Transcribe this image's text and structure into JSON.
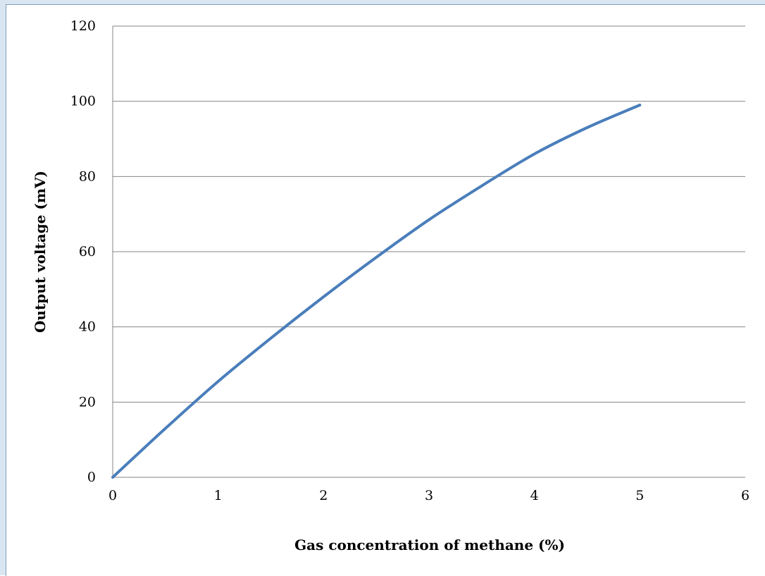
{
  "chart_data": {
    "type": "line",
    "title": "",
    "xlabel": "Gas concentration of methane (%)",
    "ylabel": "Output voltage (mV)",
    "xlim": [
      0,
      6
    ],
    "ylim": [
      0,
      120
    ],
    "x_ticks": [
      "0",
      "1",
      "2",
      "3",
      "4",
      "5",
      "6"
    ],
    "y_ticks": [
      "0",
      "20",
      "40",
      "60",
      "80",
      "100",
      "120"
    ],
    "grid": "horizontal",
    "legend": "none",
    "series": [
      {
        "color": "#4a7ebb",
        "x": [
          0,
          0.5,
          1,
          1.5,
          2,
          2.5,
          3,
          3.5,
          4,
          4.5,
          5
        ],
        "y": [
          0,
          13,
          25.5,
          37,
          48,
          58.5,
          68.5,
          77.5,
          86,
          93,
          99
        ]
      }
    ]
  }
}
